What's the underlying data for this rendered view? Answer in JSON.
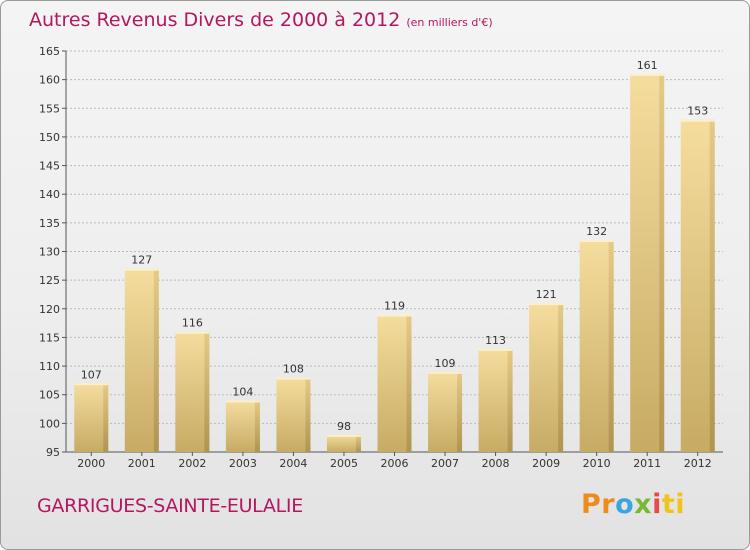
{
  "title": "Autres Revenus Divers de 2000 à 2012",
  "subtitle": "(en milliers d'€)",
  "commune": "GARRIGUES-SAINTE-EULALIE",
  "logo": {
    "text": "Proxiti",
    "parts": [
      "Pr",
      "o",
      "x",
      "i",
      "ti"
    ]
  },
  "colors": {
    "title": "#b5165f",
    "bar_light": "#f5dd9e",
    "bar_dark": "#c7ab64",
    "axis": "#555555",
    "grid": "#bbbbbb"
  },
  "chart_data": {
    "type": "bar",
    "categories": [
      "2000",
      "2001",
      "2002",
      "2003",
      "2004",
      "2005",
      "2006",
      "2007",
      "2008",
      "2009",
      "2010",
      "2011",
      "2012"
    ],
    "values": [
      107,
      127,
      116,
      104,
      108,
      98,
      119,
      109,
      113,
      121,
      132,
      161,
      153
    ],
    "ylim": [
      95,
      165
    ],
    "yticks": [
      95,
      100,
      105,
      110,
      115,
      120,
      125,
      130,
      135,
      140,
      145,
      150,
      155,
      160,
      165
    ],
    "grid": "horizontal dashed",
    "data_labels": true
  }
}
